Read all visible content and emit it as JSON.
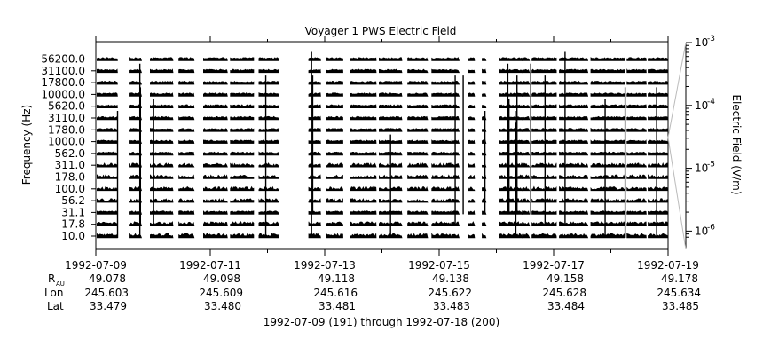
{
  "chart_data": {
    "type": "spectrogram-lines",
    "title": "Voyager 1 PWS Electric Field",
    "ylabel": "Frequency (Hz)",
    "y2label": "Electric Field (V/m)",
    "frequency_channels": [
      "10.0",
      "17.8",
      "31.1",
      "56.2",
      "100.0",
      "178.0",
      "311.0",
      "562.0",
      "1000.0",
      "1780.0",
      "3110.0",
      "5620.0",
      "10000.0",
      "17800.0",
      "31100.0",
      "56200.0"
    ],
    "y2_scale": "log",
    "y2_ticks": [
      {
        "mant": "10",
        "exp": "-6",
        "value": 1e-06
      },
      {
        "mant": "10",
        "exp": "-5",
        "value": 1e-05
      },
      {
        "mant": "10",
        "exp": "-4",
        "value": 0.0001
      },
      {
        "mant": "10",
        "exp": "-3",
        "value": 0.001
      }
    ],
    "x_range_days": [
      "1992-07-09",
      "1992-07-19"
    ],
    "x_ticks": [
      {
        "date": "1992-07-09",
        "rau": "49.078",
        "lon": "245.603",
        "lat": "33.479"
      },
      {
        "date": "1992-07-11",
        "rau": "49.098",
        "lon": "245.609",
        "lat": "33.480"
      },
      {
        "date": "1992-07-13",
        "rau": "49.118",
        "lon": "245.616",
        "lat": "33.481"
      },
      {
        "date": "1992-07-15",
        "rau": "49.138",
        "lon": "245.622",
        "lat": "33.483"
      },
      {
        "date": "1992-07-17",
        "rau": "49.158",
        "lon": "245.628",
        "lat": "33.484"
      },
      {
        "date": "1992-07-19",
        "rau": "49.178",
        "lon": "245.634",
        "lat": "33.485"
      }
    ],
    "row_labels": {
      "rau_main": "R",
      "rau_sub": "AU",
      "lon": "Lon",
      "lat": "Lat"
    },
    "date_range_caption": "1992-07-09 (191) through 1992-07-18 (200)",
    "data_segments_days": [
      [
        0.02,
        0.38
      ],
      [
        0.58,
        0.8
      ],
      [
        0.95,
        1.35
      ],
      [
        1.45,
        1.72
      ],
      [
        1.88,
        2.3
      ],
      [
        2.35,
        2.76
      ],
      [
        2.85,
        3.2
      ],
      [
        3.72,
        3.93
      ],
      [
        4.02,
        4.32
      ],
      [
        4.45,
        4.9
      ],
      [
        4.95,
        5.35
      ],
      [
        5.45,
        5.8
      ],
      [
        5.87,
        6.22
      ],
      [
        6.22,
        6.35
      ],
      [
        6.5,
        6.62
      ],
      [
        6.75,
        6.82
      ],
      [
        7.05,
        7.45
      ],
      [
        7.45,
        7.58
      ],
      [
        7.62,
        8.05
      ],
      [
        8.1,
        8.6
      ],
      [
        8.65,
        9.25
      ],
      [
        9.28,
        9.62
      ],
      [
        9.65,
        10.0
      ]
    ],
    "bursts_days": [
      0.38,
      0.77,
      0.78,
      1.01,
      2.97,
      3.77,
      3.79,
      5.15,
      6.28,
      6.42,
      6.8,
      7.2,
      7.22,
      7.33,
      7.34,
      7.36,
      7.6,
      7.85,
      8.2,
      8.9,
      9.25,
      9.8
    ],
    "grid": false
  }
}
